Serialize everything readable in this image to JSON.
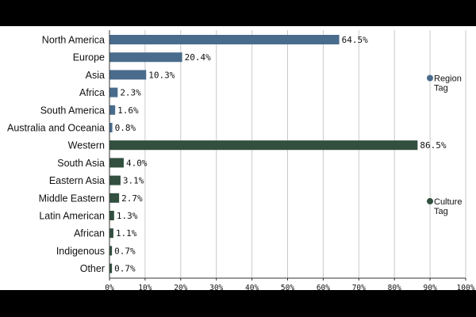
{
  "chart_data": {
    "type": "bar",
    "orientation": "horizontal",
    "xlim": [
      0,
      100
    ],
    "x_ticks": [
      "0%",
      "10%",
      "20%",
      "30%",
      "40%",
      "50%",
      "60%",
      "70%",
      "80%",
      "90%",
      "100%"
    ],
    "grid": true,
    "legend_placement": "right",
    "series": [
      {
        "name": "Region Tag",
        "legend_lines": [
          "Region",
          "Tag"
        ],
        "color": "#4a6c8c",
        "categories": [
          "North America",
          "Europe",
          "Asia",
          "Africa",
          "South America",
          "Australia and Oceania"
        ],
        "values": [
          64.5,
          20.4,
          10.3,
          2.3,
          1.6,
          0.8
        ],
        "value_labels": [
          "64.5%",
          "20.4%",
          "10.3%",
          "2.3%",
          "1.6%",
          "0.8%"
        ]
      },
      {
        "name": "Culture Tag",
        "legend_lines": [
          "Culture",
          "Tag"
        ],
        "color": "#33503f",
        "categories": [
          "Western",
          "South Asia",
          "Eastern Asia",
          "Middle Eastern",
          "Latin American",
          "African",
          "Indigenous",
          "Other"
        ],
        "values": [
          86.5,
          4.0,
          3.1,
          2.7,
          1.3,
          1.1,
          0.7,
          0.7
        ],
        "value_labels": [
          "86.5%",
          "4.0%",
          "3.1%",
          "2.7%",
          "1.3%",
          "1.1%",
          "0.7%",
          "0.7%"
        ]
      }
    ]
  }
}
